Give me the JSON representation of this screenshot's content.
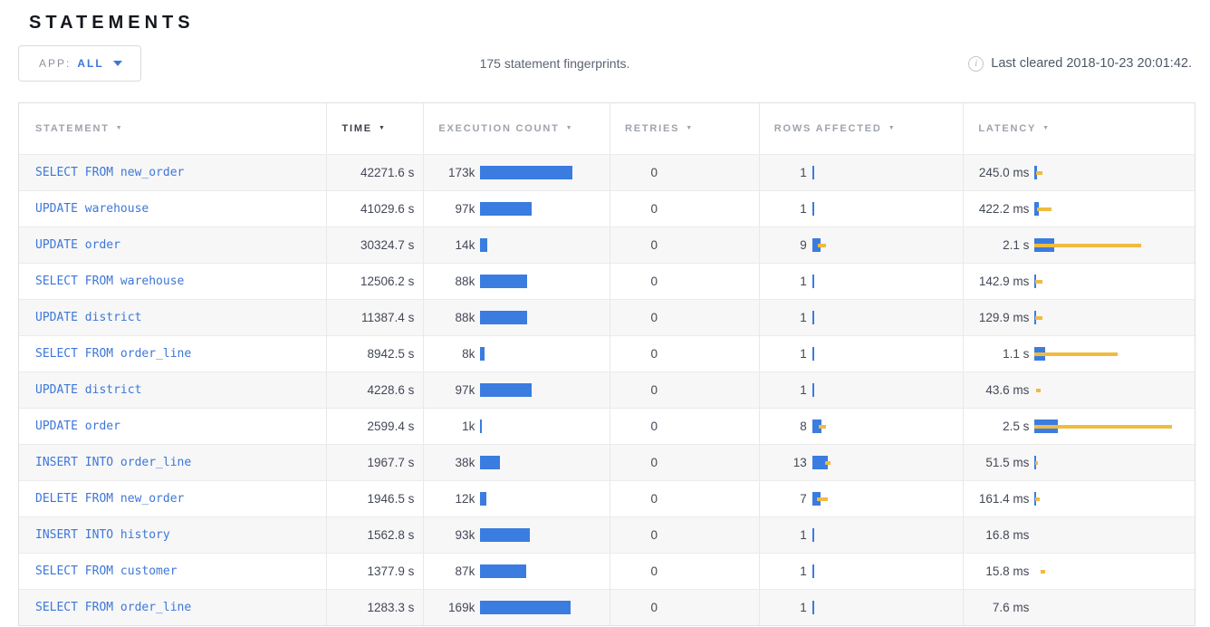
{
  "page": {
    "title": "STATEMENTS"
  },
  "toolbar": {
    "app_label": "APP:",
    "app_value": "ALL",
    "summary": "175 statement fingerprints.",
    "last_cleared": "Last cleared 2018-10-23 20:01:42."
  },
  "icons": {
    "info": "circled-i",
    "sort": "triangle-down",
    "dropdown": "caret-down"
  },
  "colors": {
    "bar_blue": "#3a7ce0",
    "bar_yellow": "#f0bb3f",
    "link_blue": "#3d77d9",
    "header_gray": "#9ea3ad",
    "header_active": "#3c414b",
    "row_alt_bg": "#f7f7f7"
  },
  "table": {
    "columns": [
      {
        "label": "STATEMENT",
        "active": false
      },
      {
        "label": "TIME",
        "active": true
      },
      {
        "label": "EXECUTION COUNT",
        "active": false
      },
      {
        "label": "RETRIES",
        "active": false
      },
      {
        "label": "ROWS AFFECTED",
        "active": false
      },
      {
        "label": "LATENCY",
        "active": false
      }
    ],
    "rows": [
      {
        "statement": "SELECT FROM new_order",
        "time": "42271.6 s",
        "exec_label": "173k",
        "exec_k": 173,
        "retries": "0",
        "rows_label": "1",
        "rows_viz": [
          2,
          0,
          0
        ],
        "latency_label": "245.0 ms",
        "latency_viz": [
          3,
          2,
          7
        ]
      },
      {
        "statement": "UPDATE warehouse",
        "time": "41029.6 s",
        "exec_label": "97k",
        "exec_k": 97,
        "retries": "0",
        "rows_label": "1",
        "rows_viz": [
          2,
          0,
          0
        ],
        "latency_label": "422.2 ms",
        "latency_viz": [
          5,
          3,
          16
        ]
      },
      {
        "statement": "UPDATE order",
        "time": "30324.7 s",
        "exec_label": "14k",
        "exec_k": 14,
        "retries": "0",
        "rows_label": "9",
        "rows_viz": [
          9,
          6,
          9
        ],
        "latency_label": "2.1 s",
        "latency_viz": [
          22,
          0,
          118
        ]
      },
      {
        "statement": "SELECT FROM warehouse",
        "time": "12506.2 s",
        "exec_label": "88k",
        "exec_k": 88,
        "retries": "0",
        "rows_label": "1",
        "rows_viz": [
          2,
          0,
          0
        ],
        "latency_label": "142.9 ms",
        "latency_viz": [
          2,
          1,
          8
        ]
      },
      {
        "statement": "UPDATE district",
        "time": "11387.4 s",
        "exec_label": "88k",
        "exec_k": 88,
        "retries": "0",
        "rows_label": "1",
        "rows_viz": [
          2,
          0,
          0
        ],
        "latency_label": "129.9 ms",
        "latency_viz": [
          2,
          1,
          8
        ]
      },
      {
        "statement": "SELECT FROM order_line",
        "time": "8942.5 s",
        "exec_label": "8k",
        "exec_k": 8,
        "retries": "0",
        "rows_label": "1",
        "rows_viz": [
          2,
          0,
          0
        ],
        "latency_label": "1.1 s",
        "latency_viz": [
          12,
          0,
          92
        ]
      },
      {
        "statement": "UPDATE district",
        "time": "4228.6 s",
        "exec_label": "97k",
        "exec_k": 97,
        "retries": "0",
        "rows_label": "1",
        "rows_viz": [
          2,
          0,
          0
        ],
        "latency_label": "43.6 ms",
        "latency_viz": [
          0,
          2,
          5
        ]
      },
      {
        "statement": "UPDATE order",
        "time": "2599.4 s",
        "exec_label": "1k",
        "exec_k": 1,
        "retries": "0",
        "rows_label": "8",
        "rows_viz": [
          10,
          7,
          8
        ],
        "latency_label": "2.5 s",
        "latency_viz": [
          26,
          0,
          152
        ]
      },
      {
        "statement": "INSERT INTO order_line",
        "time": "1967.7 s",
        "exec_label": "38k",
        "exec_k": 38,
        "retries": "0",
        "rows_label": "13",
        "rows_viz": [
          17,
          14,
          6
        ],
        "latency_label": "51.5 ms",
        "latency_viz": [
          2,
          1,
          3
        ]
      },
      {
        "statement": "DELETE FROM new_order",
        "time": "1946.5 s",
        "exec_label": "12k",
        "exec_k": 12,
        "retries": "0",
        "rows_label": "7",
        "rows_viz": [
          9,
          5,
          12
        ],
        "latency_label": "161.4 ms",
        "latency_viz": [
          2,
          1,
          5
        ]
      },
      {
        "statement": "INSERT INTO history",
        "time": "1562.8 s",
        "exec_label": "93k",
        "exec_k": 93,
        "retries": "0",
        "rows_label": "1",
        "rows_viz": [
          2,
          0,
          0
        ],
        "latency_label": "16.8 ms",
        "latency_viz": [
          0,
          0,
          0
        ]
      },
      {
        "statement": "SELECT FROM customer",
        "time": "1377.9 s",
        "exec_label": "87k",
        "exec_k": 87,
        "retries": "0",
        "rows_label": "1",
        "rows_viz": [
          2,
          0,
          0
        ],
        "latency_label": "15.8 ms",
        "latency_viz": [
          0,
          7,
          5
        ]
      },
      {
        "statement": "SELECT FROM order_line",
        "time": "1283.3 s",
        "exec_label": "169k",
        "exec_k": 169,
        "retries": "0",
        "rows_label": "1",
        "rows_viz": [
          2,
          0,
          0
        ],
        "latency_label": "7.6 ms",
        "latency_viz": [
          0,
          0,
          0
        ]
      }
    ]
  }
}
